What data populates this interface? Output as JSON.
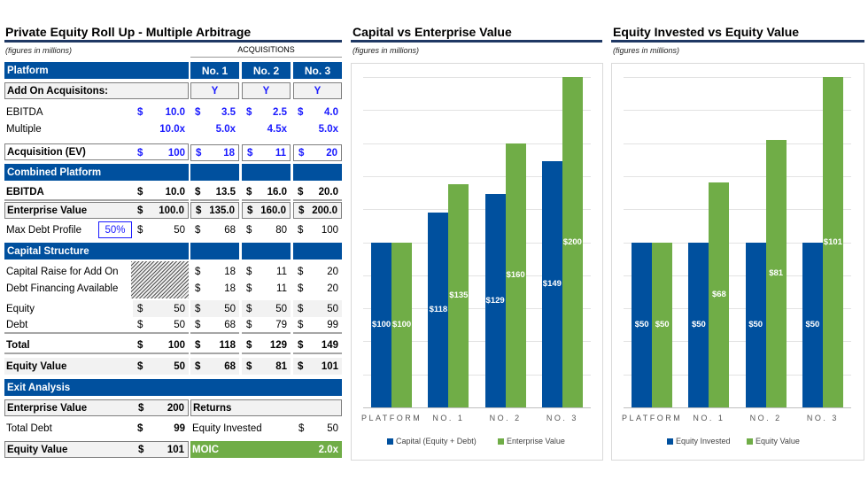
{
  "left": {
    "title": "Private Equity Roll Up - Multiple Arbitrage",
    "subtitle": "(figures in millions)",
    "acquisitions_label": "ACQUISITIONS",
    "platform_band": {
      "label": "Platform",
      "cols": [
        "No. 1",
        "No. 2",
        "No. 3"
      ]
    },
    "add_on": {
      "label": "Add On Acquisitons:",
      "cols": [
        "Y",
        "Y",
        "Y"
      ]
    },
    "ebitda": {
      "label": "EBITDA",
      "values": [
        "10.0",
        "3.5",
        "2.5",
        "4.0"
      ]
    },
    "multiple": {
      "label": "Multiple",
      "values": [
        "10.0x",
        "5.0x",
        "4.5x",
        "5.0x"
      ]
    },
    "acquisition_ev": {
      "label": "Acquisition (EV)",
      "values": [
        "100",
        "18",
        "11",
        "20"
      ]
    },
    "combined_band": {
      "label": "Combined Platform"
    },
    "combined_ebitda": {
      "label": "EBITDA",
      "values": [
        "10.0",
        "13.5",
        "16.0",
        "20.0"
      ]
    },
    "enterprise_value": {
      "label": "Enterprise Value",
      "values": [
        "100.0",
        "135.0",
        "160.0",
        "200.0"
      ]
    },
    "max_debt": {
      "label": "Max Debt Profile",
      "input": "50%",
      "values": [
        "50",
        "68",
        "80",
        "100"
      ]
    },
    "capital_band": {
      "label": "Capital Structure"
    },
    "capital_raise": {
      "label": "Capital Raise for Add On",
      "values": [
        "",
        "18",
        "11",
        "20"
      ]
    },
    "debt_financing": {
      "label": "Debt Financing Available",
      "values": [
        "",
        "18",
        "11",
        "20"
      ]
    },
    "equity": {
      "label": "Equity",
      "values": [
        "50",
        "50",
        "50",
        "50"
      ]
    },
    "debt": {
      "label": "Debt",
      "values": [
        "50",
        "68",
        "79",
        "99"
      ]
    },
    "total": {
      "label": "Total",
      "values": [
        "100",
        "118",
        "129",
        "149"
      ]
    },
    "equity_value": {
      "label": "Equity Value",
      "values": [
        "50",
        "68",
        "81",
        "101"
      ]
    },
    "currency": "$",
    "exit": {
      "band": "Exit Analysis",
      "enterprise_value": {
        "label": "Enterprise Value",
        "value": "200"
      },
      "total_debt": {
        "label": "Total Debt",
        "value": "99"
      },
      "equity_value": {
        "label": "Equity Value",
        "value": "101"
      },
      "returns_label": "Returns",
      "equity_invested": {
        "label": "Equity Invested",
        "value": "50"
      },
      "moic": {
        "label": "MOIC",
        "value": "2.0x"
      }
    }
  },
  "colors": {
    "navy": "#00509e",
    "green": "#70ad47",
    "input_blue": "#1a1aff"
  },
  "chart_data": [
    {
      "type": "bar",
      "title": "Capital vs Enterprise Value",
      "subtitle": "(figures in millions)",
      "categories": [
        "PLATFORM",
        "NO. 1",
        "NO. 2",
        "NO. 3"
      ],
      "series": [
        {
          "name": "Capital (Equity + Debt)",
          "values": [
            100,
            118,
            129,
            149
          ],
          "labels": [
            "$100",
            "$118",
            "$129",
            "$149"
          ],
          "color": "#00509e"
        },
        {
          "name": "Enterprise Value",
          "values": [
            100,
            135,
            160,
            200
          ],
          "labels": [
            "$100",
            "$135",
            "$160",
            "$200"
          ],
          "color": "#70ad47"
        }
      ],
      "ylim": [
        0,
        200
      ],
      "grid": true,
      "legend": "bottom"
    },
    {
      "type": "bar",
      "title": "Equity Invested vs Equity Value",
      "subtitle": "(figures in millions)",
      "categories": [
        "PLATFORM",
        "NO. 1",
        "NO. 2",
        "NO. 3"
      ],
      "series": [
        {
          "name": "Equity Invested",
          "values": [
            50,
            50,
            50,
            50
          ],
          "labels": [
            "$50",
            "$50",
            "$50",
            "$50"
          ],
          "color": "#00509e"
        },
        {
          "name": "Equity Value",
          "values": [
            50,
            68,
            81,
            101
          ],
          "labels": [
            "$50",
            "$68",
            "$81",
            "$101"
          ],
          "color": "#70ad47"
        }
      ],
      "ylim": [
        0,
        100
      ],
      "grid": true,
      "legend": "bottom"
    }
  ]
}
